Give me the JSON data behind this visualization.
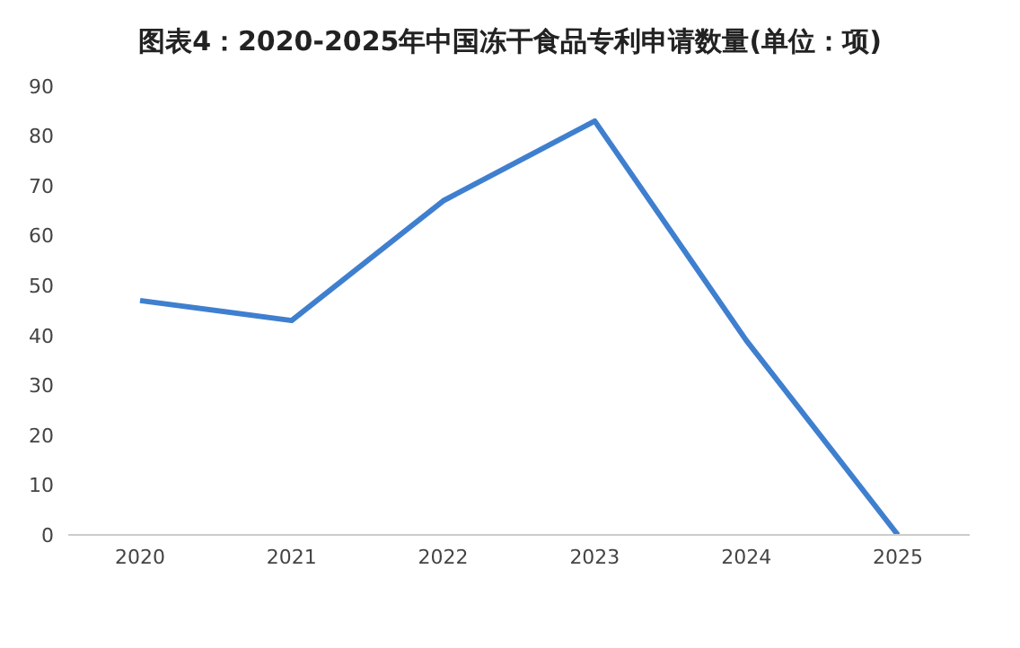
{
  "chart_data": {
    "type": "line",
    "title": "图表4：2020-2025年中国冻干食品专利申请数量(单位：项)",
    "categories": [
      "2020",
      "2021",
      "2022",
      "2023",
      "2024",
      "2025"
    ],
    "series": [
      {
        "color": "#3f7fcf",
        "values": [
          47,
          43,
          67,
          83,
          39,
          0
        ]
      }
    ],
    "ylim": [
      0,
      90
    ],
    "yticks": [
      0,
      10,
      20,
      30,
      40,
      50,
      60,
      70,
      80,
      90
    ],
    "grid": false,
    "marker": "none",
    "line_style": "solid"
  }
}
